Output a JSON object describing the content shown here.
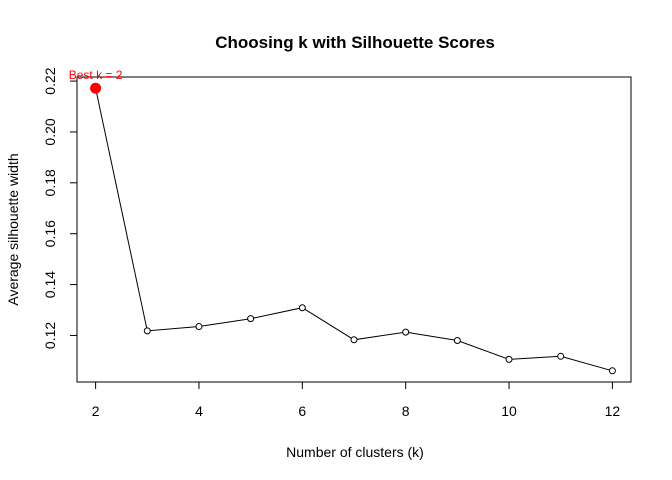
{
  "chart_data": {
    "type": "line",
    "title": "Choosing k with Silhouette Scores",
    "xlabel": "Number of clusters (k)",
    "ylabel": "Average silhouette width",
    "x": [
      2,
      3,
      4,
      5,
      6,
      7,
      8,
      9,
      10,
      11,
      12
    ],
    "y": [
      0.2172,
      0.1218,
      0.1235,
      0.1266,
      0.1309,
      0.1183,
      0.1213,
      0.118,
      0.1106,
      0.1118,
      0.1061
    ],
    "xlim": [
      1.64,
      12.36
    ],
    "ylim": [
      0.1017,
      0.2216
    ],
    "xticks": [
      2,
      4,
      6,
      8,
      10,
      12
    ],
    "yticks": [
      "0.12",
      "0.14",
      "0.16",
      "0.18",
      "0.20",
      "0.22"
    ],
    "highlight": {
      "x": 2,
      "y": 0.2172,
      "color": "#ff0000",
      "label": "Best k = 2"
    },
    "line_color": "#000000",
    "grid": false
  }
}
